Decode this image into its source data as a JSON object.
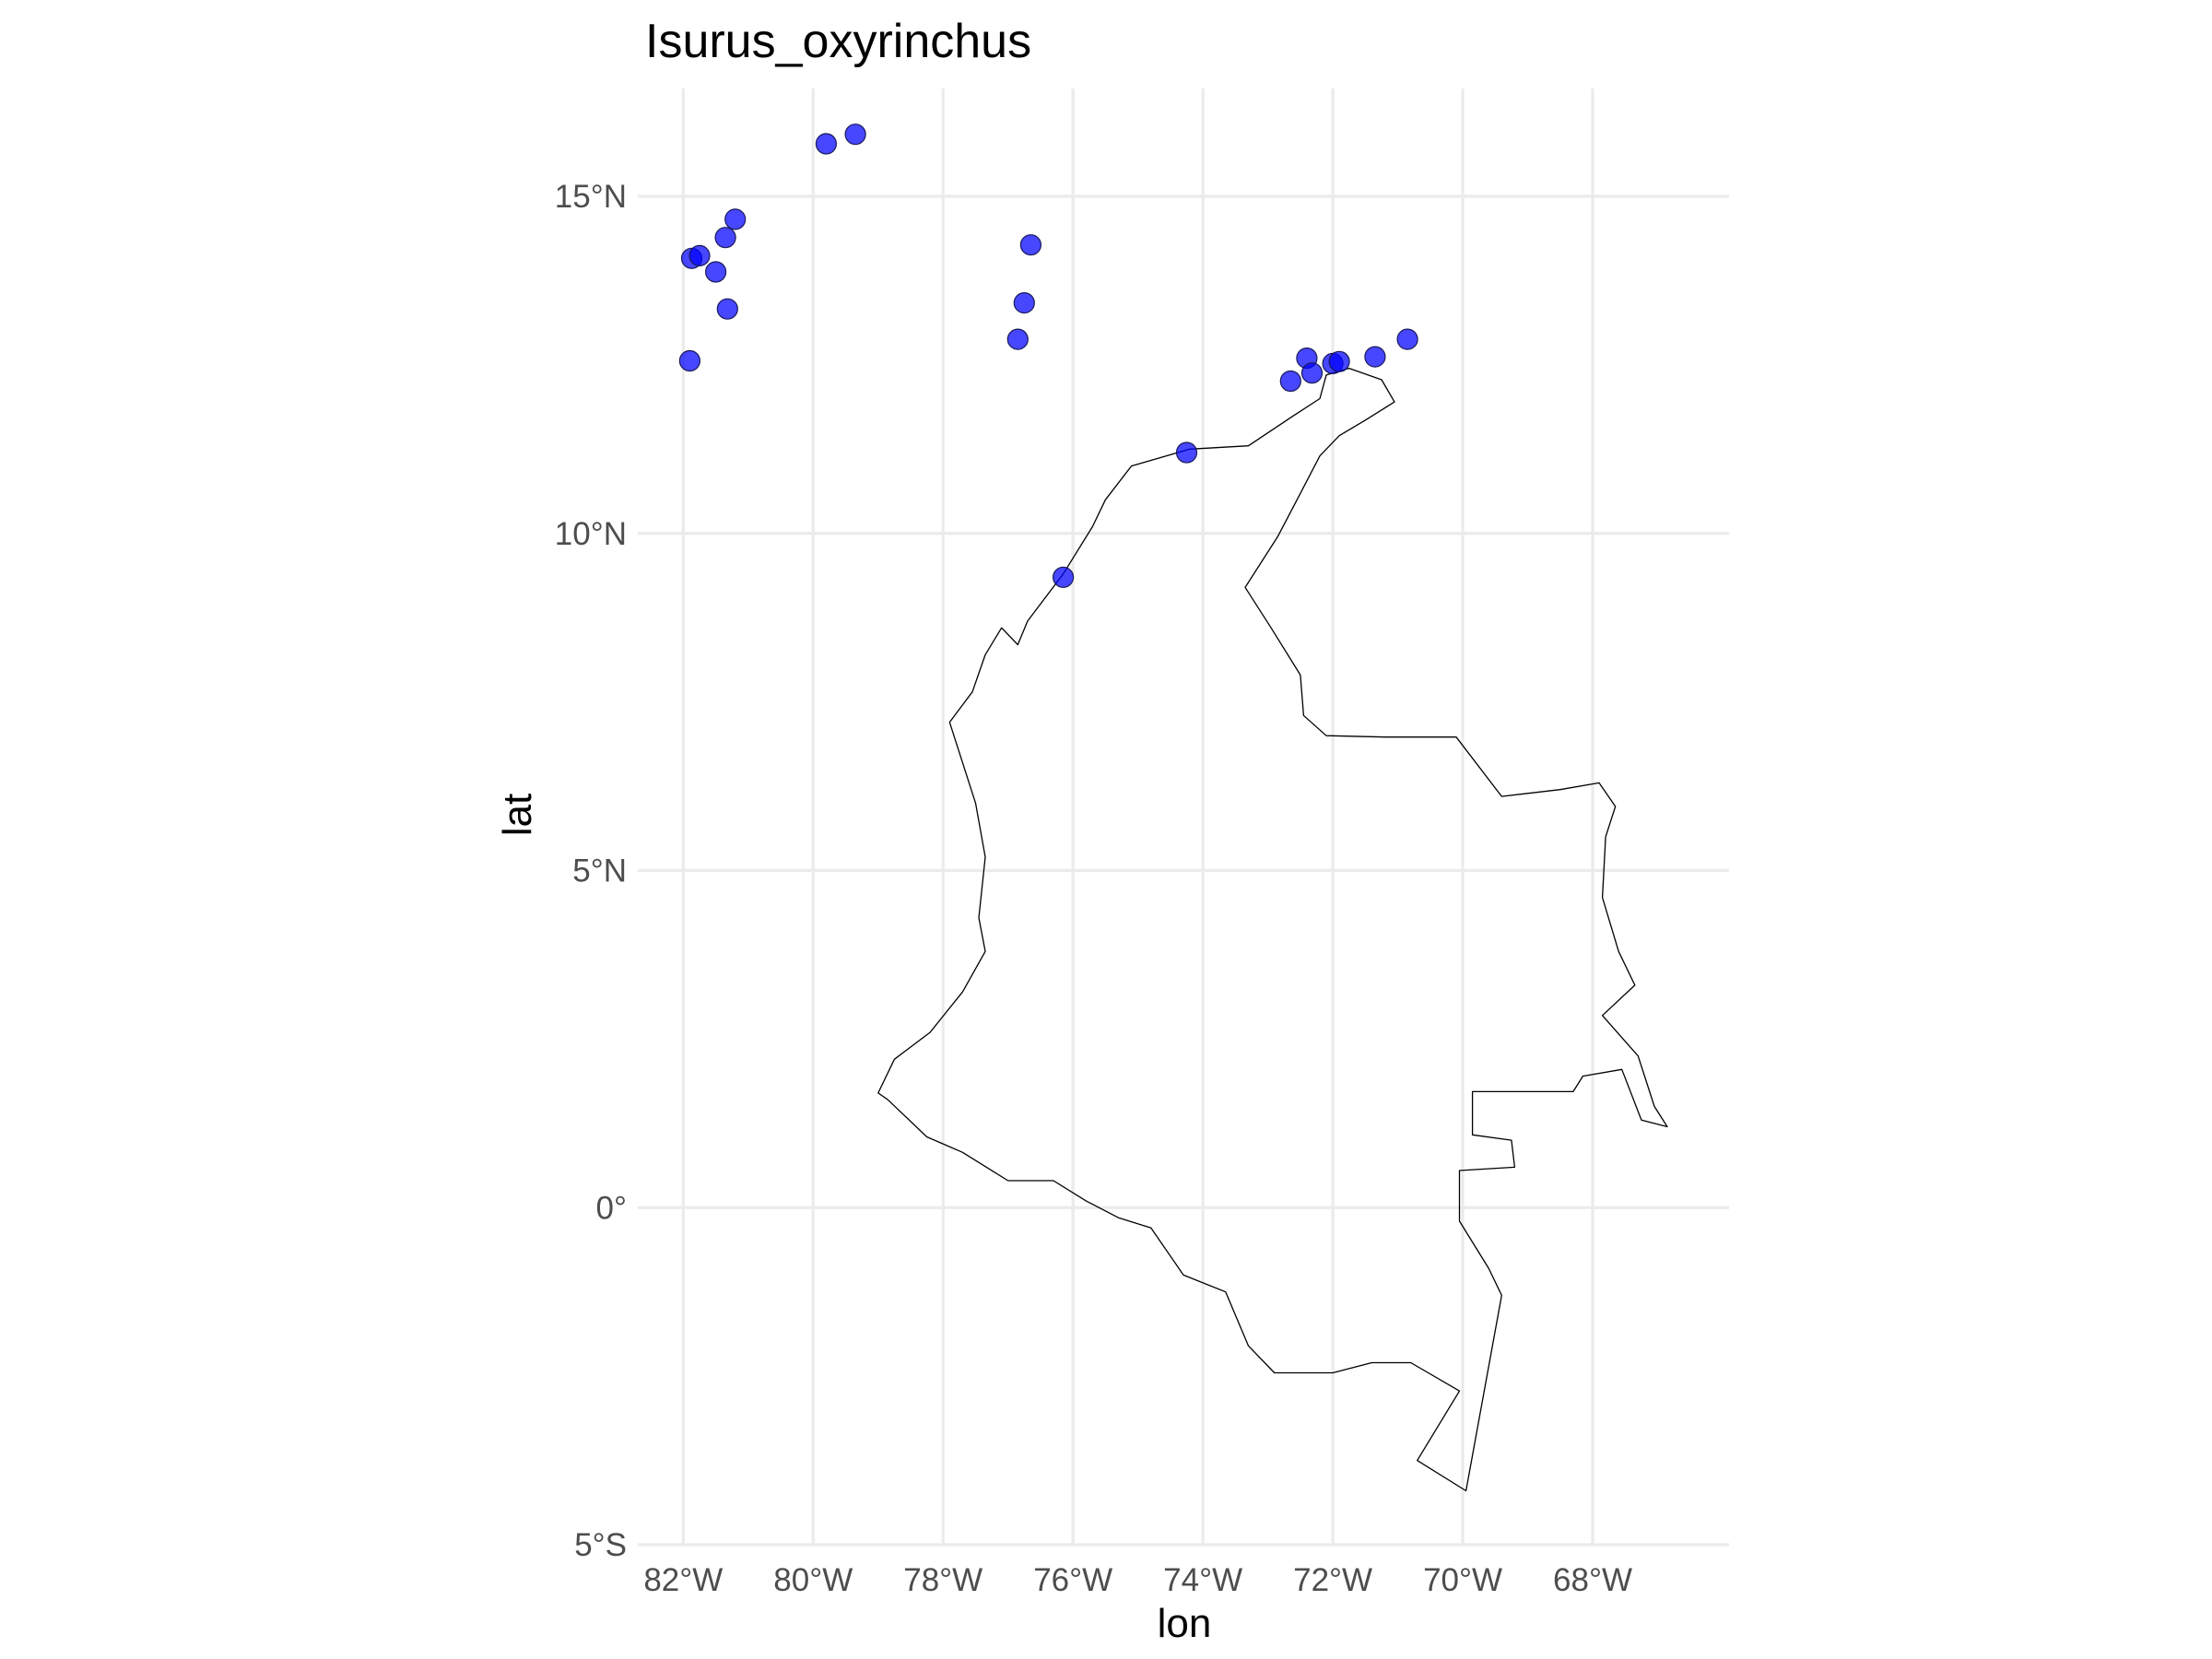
{
  "title": "Isurus_oxyrinchus",
  "chart_data": {
    "type": "scatter",
    "title": "Isurus_oxyrinchus",
    "xlabel": "lon",
    "ylabel": "lat",
    "xlim": [
      -82.7,
      -65.9
    ],
    "ylim": [
      -5,
      16.6
    ],
    "x_ticks": [
      {
        "value": -82,
        "label": "82°W"
      },
      {
        "value": -80,
        "label": "80°W"
      },
      {
        "value": -78,
        "label": "78°W"
      },
      {
        "value": -76,
        "label": "76°W"
      },
      {
        "value": -74,
        "label": "74°W"
      },
      {
        "value": -72,
        "label": "72°W"
      },
      {
        "value": -70,
        "label": "70°W"
      },
      {
        "value": -68,
        "label": "68°W"
      }
    ],
    "y_ticks": [
      {
        "value": 15,
        "label": "15°N"
      },
      {
        "value": 10,
        "label": "10°N"
      },
      {
        "value": 5,
        "label": "5°N"
      },
      {
        "value": 0,
        "label": "0°"
      },
      {
        "value": -5,
        "label": "5°S"
      }
    ],
    "grid": true,
    "point_color": "#0000ff",
    "outline_color": "#000000",
    "points": [
      {
        "lon": -79.8,
        "lat": 15.78
      },
      {
        "lon": -79.35,
        "lat": 15.92
      },
      {
        "lon": -81.87,
        "lat": 14.08
      },
      {
        "lon": -81.75,
        "lat": 14.12
      },
      {
        "lon": -81.2,
        "lat": 14.66
      },
      {
        "lon": -81.35,
        "lat": 14.39
      },
      {
        "lon": -81.5,
        "lat": 13.88
      },
      {
        "lon": -81.32,
        "lat": 13.33
      },
      {
        "lon": -81.9,
        "lat": 12.56
      },
      {
        "lon": -76.65,
        "lat": 14.28
      },
      {
        "lon": -76.75,
        "lat": 13.42
      },
      {
        "lon": -76.85,
        "lat": 12.88
      },
      {
        "lon": -72.65,
        "lat": 12.26
      },
      {
        "lon": -72.4,
        "lat": 12.6
      },
      {
        "lon": -72.32,
        "lat": 12.38
      },
      {
        "lon": -72.0,
        "lat": 12.52
      },
      {
        "lon": -71.9,
        "lat": 12.55
      },
      {
        "lon": -71.35,
        "lat": 12.62
      },
      {
        "lon": -70.85,
        "lat": 12.88
      },
      {
        "lon": -74.25,
        "lat": 11.2
      },
      {
        "lon": -76.15,
        "lat": 9.35
      }
    ],
    "outline": [
      [
        -72.1,
        12.35
      ],
      [
        -71.75,
        12.45
      ],
      [
        -71.25,
        12.28
      ],
      [
        -71.05,
        11.95
      ],
      [
        -71.5,
        11.68
      ],
      [
        -71.9,
        11.45
      ],
      [
        -72.2,
        11.15
      ],
      [
        -72.55,
        10.5
      ],
      [
        -72.85,
        9.95
      ],
      [
        -73.35,
        9.2
      ],
      [
        -72.95,
        8.6
      ],
      [
        -72.5,
        7.9
      ],
      [
        -72.45,
        7.3
      ],
      [
        -72.1,
        7.0
      ],
      [
        -71.2,
        6.98
      ],
      [
        -70.1,
        6.98
      ],
      [
        -69.4,
        6.1
      ],
      [
        -68.5,
        6.2
      ],
      [
        -67.9,
        6.3
      ],
      [
        -67.65,
        5.95
      ],
      [
        -67.8,
        5.5
      ],
      [
        -67.85,
        4.6
      ],
      [
        -67.6,
        3.8
      ],
      [
        -67.35,
        3.3
      ],
      [
        -67.85,
        2.85
      ],
      [
        -67.3,
        2.25
      ],
      [
        -67.05,
        1.5
      ],
      [
        -66.85,
        1.2
      ],
      [
        -67.25,
        1.3
      ],
      [
        -67.55,
        2.05
      ],
      [
        -68.15,
        1.95
      ],
      [
        -68.3,
        1.72
      ],
      [
        -69.85,
        1.72
      ],
      [
        -69.85,
        1.08
      ],
      [
        -69.25,
        1.0
      ],
      [
        -69.2,
        0.6
      ],
      [
        -70.05,
        0.55
      ],
      [
        -70.05,
        -0.2
      ],
      [
        -69.6,
        -0.9
      ],
      [
        -69.4,
        -1.3
      ],
      [
        -69.95,
        -4.2
      ],
      [
        -70.7,
        -3.75
      ],
      [
        -70.05,
        -2.72
      ],
      [
        -70.8,
        -2.3
      ],
      [
        -71.4,
        -2.3
      ],
      [
        -72.0,
        -2.45
      ],
      [
        -72.9,
        -2.45
      ],
      [
        -73.3,
        -2.05
      ],
      [
        -73.65,
        -1.25
      ],
      [
        -74.3,
        -1.0
      ],
      [
        -74.8,
        -0.3
      ],
      [
        -75.3,
        -0.15
      ],
      [
        -75.8,
        0.1
      ],
      [
        -76.3,
        0.4
      ],
      [
        -77.0,
        0.4
      ],
      [
        -77.7,
        0.82
      ],
      [
        -78.25,
        1.05
      ],
      [
        -78.85,
        1.6
      ],
      [
        -79.0,
        1.7
      ],
      [
        -78.75,
        2.2
      ],
      [
        -78.2,
        2.6
      ],
      [
        -77.7,
        3.2
      ],
      [
        -77.35,
        3.8
      ],
      [
        -77.45,
        4.3
      ],
      [
        -77.35,
        5.2
      ],
      [
        -77.5,
        6.0
      ],
      [
        -77.9,
        7.2
      ],
      [
        -77.55,
        7.65
      ],
      [
        -77.35,
        8.2
      ],
      [
        -77.1,
        8.6
      ],
      [
        -76.85,
        8.35
      ],
      [
        -76.7,
        8.7
      ],
      [
        -76.15,
        9.4
      ],
      [
        -75.7,
        10.1
      ],
      [
        -75.5,
        10.5
      ],
      [
        -75.1,
        11.0
      ],
      [
        -74.2,
        11.25
      ],
      [
        -73.3,
        11.3
      ],
      [
        -72.6,
        11.75
      ],
      [
        -72.2,
        12.0
      ],
      [
        -72.1,
        12.35
      ]
    ]
  }
}
